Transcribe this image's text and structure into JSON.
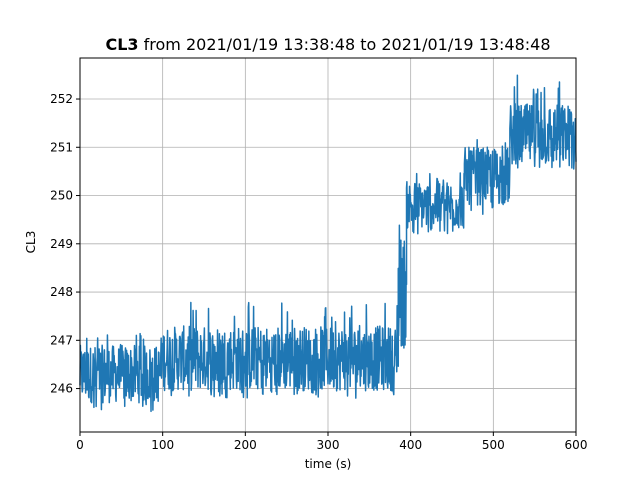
{
  "chart_data": {
    "type": "line",
    "title": {
      "bold": "CL3",
      "rest": " from 2021/01/19 13:38:48 to 2021/01/19 13:48:48"
    },
    "xlabel": "time (s)",
    "ylabel": "CL3",
    "xlim": [
      0,
      600
    ],
    "ylim": [
      245.1,
      252.85
    ],
    "xticks": [
      0,
      100,
      200,
      300,
      400,
      500,
      600
    ],
    "yticks": [
      246,
      247,
      248,
      249,
      250,
      251,
      252
    ],
    "grid": true,
    "line_color": "#1f77b4",
    "series": [
      {
        "name": "",
        "segments": [
          {
            "x_start": 0,
            "x_end": 100,
            "low": 245.5,
            "high": 247.2,
            "band_low": 245.7,
            "band_high": 246.9
          },
          {
            "x_start": 100,
            "x_end": 385,
            "low": 245.8,
            "high": 247.8,
            "band_low": 245.95,
            "band_high": 247.3
          },
          {
            "x_start": 385,
            "x_end": 395,
            "low": 246.5,
            "high": 249.5,
            "band_low": 246.8,
            "band_high": 249.2
          },
          {
            "x_start": 395,
            "x_end": 465,
            "low": 249.2,
            "high": 250.5,
            "band_low": 249.3,
            "band_high": 250.3
          },
          {
            "x_start": 465,
            "x_end": 520,
            "low": 249.6,
            "high": 251.2,
            "band_low": 249.8,
            "band_high": 251.0
          },
          {
            "x_start": 520,
            "x_end": 600,
            "low": 250.5,
            "high": 252.5,
            "band_low": 250.6,
            "band_high": 251.9
          }
        ]
      }
    ]
  }
}
